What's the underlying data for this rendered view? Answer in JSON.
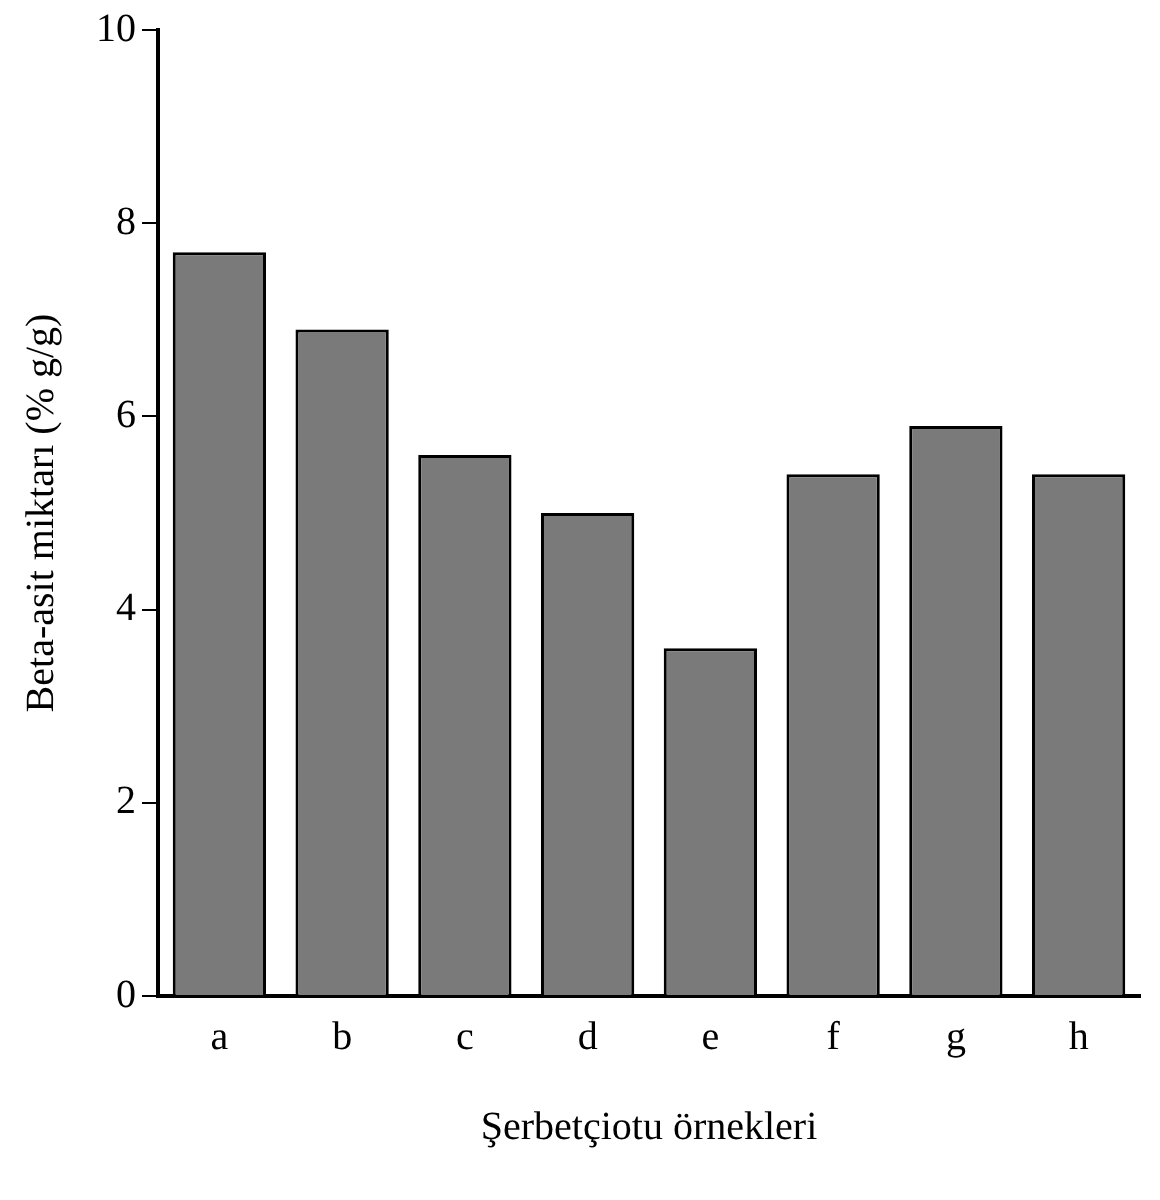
{
  "chart_data": {
    "type": "bar",
    "xlabel": "Şerbetçiotu örnekleri",
    "ylabel": "Beta-asit miktarı (% g/g)",
    "categories": [
      "a",
      "b",
      "c",
      "d",
      "e",
      "f",
      "g",
      "h"
    ],
    "values": [
      7.7,
      6.9,
      5.6,
      5.0,
      3.6,
      5.4,
      5.9,
      5.4
    ],
    "color": "#7a7a7a",
    "ylim": [
      0,
      10
    ],
    "yticks": [
      0,
      2,
      4,
      6,
      8,
      10
    ],
    "grid": false,
    "legend": false
  }
}
